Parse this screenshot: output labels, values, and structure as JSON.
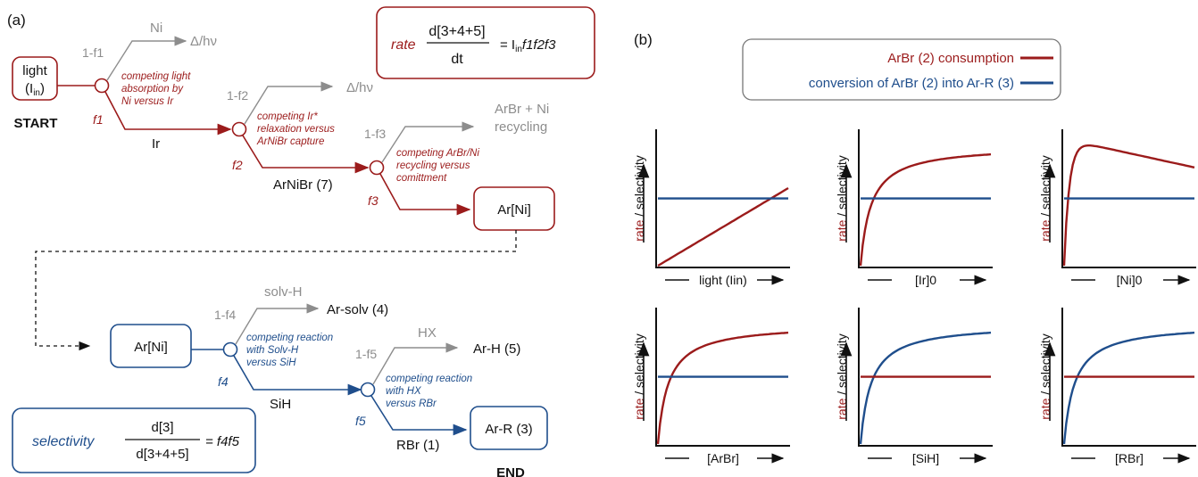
{
  "panel_a": {
    "label": "(a)",
    "start": {
      "line1": "light",
      "line2": "(I",
      "line2_sub": "in",
      "line2_end": ")",
      "caption": "START"
    },
    "end_caption": "END",
    "rate_box": {
      "word": "rate",
      "numerator": "d[3+4+5]",
      "denominator": "dt",
      "rhs": "= I",
      "rhs_sub": "in",
      "rhs_rest": "f1f2f3"
    },
    "sel_box": {
      "word": "selectivity",
      "numerator": "d[3]",
      "denominator": "d[3+4+5]",
      "rhs": "=  f4f5"
    },
    "f1": {
      "frac": "f1",
      "one_minus": "1-f1",
      "dead_end": "Δ/hν",
      "species": "Ni",
      "main": "Ir",
      "note": [
        "competing light",
        "absorption by",
        "Ni versus Ir"
      ]
    },
    "f2": {
      "frac": "f2",
      "one_minus": "1-f2",
      "dead_end": "Δ/hν",
      "main": "ArNiBr (7)",
      "note": [
        "competing Ir*",
        "relaxation versus",
        "ArNiBr capture"
      ]
    },
    "f3": {
      "frac": "f3",
      "one_minus": "1-f3",
      "side": [
        "ArBr + Ni",
        "recycling"
      ],
      "main": "Ar[Ni]",
      "note": [
        "competing ArBr/Ni",
        "recycling versus",
        "comittment"
      ]
    },
    "f4": {
      "frac": "f4",
      "one_minus": "1-f4",
      "side_reagent": "solv-H",
      "side_product": "Ar-solv (4)",
      "start_box": "Ar[Ni]",
      "main": "SiH",
      "note": [
        "competing reaction",
        "with Solv-H",
        "versus SiH"
      ]
    },
    "f5": {
      "frac": "f5",
      "one_minus": "1-f5",
      "side_reagent": "HX",
      "side_product": "Ar-H (5)",
      "main": "RBr (1)",
      "product": "Ar-R (3)",
      "note": [
        "competing reaction",
        "with HX",
        "versus RBr"
      ]
    }
  },
  "panel_b": {
    "label": "(b)",
    "legend": [
      {
        "text": "ArBr (2) consumption",
        "color": "#9b1b1b"
      },
      {
        "text": "conversion of ArBr (2) into Ar-R (3)",
        "color": "#1f4e8c"
      }
    ],
    "ylabel_rate": "rate",
    "ylabel_sel": "/ selectivity",
    "colors": {
      "rate": "#9b1b1b",
      "selectivity": "#1f4e8c"
    }
  },
  "chart_data": [
    {
      "type": "line",
      "xlabel": "light (Iin)",
      "series": [
        {
          "color": "#9b1b1b",
          "shape": "linear increase"
        },
        {
          "color": "#1f4e8c",
          "shape": "constant"
        }
      ]
    },
    {
      "type": "line",
      "xlabel": "[Ir]0",
      "series": [
        {
          "color": "#9b1b1b",
          "shape": "saturating increase"
        },
        {
          "color": "#1f4e8c",
          "shape": "constant"
        }
      ]
    },
    {
      "type": "line",
      "xlabel": "[Ni]0",
      "series": [
        {
          "color": "#9b1b1b",
          "shape": "rise then decline"
        },
        {
          "color": "#1f4e8c",
          "shape": "constant"
        }
      ]
    },
    {
      "type": "line",
      "xlabel": "[ArBr]",
      "series": [
        {
          "color": "#9b1b1b",
          "shape": "saturating increase"
        },
        {
          "color": "#1f4e8c",
          "shape": "constant"
        }
      ]
    },
    {
      "type": "line",
      "xlabel": "[SiH]",
      "series": [
        {
          "color": "#1f4e8c",
          "shape": "saturating increase"
        },
        {
          "color": "#9b1b1b",
          "shape": "constant"
        }
      ]
    },
    {
      "type": "line",
      "xlabel": "[RBr]",
      "series": [
        {
          "color": "#1f4e8c",
          "shape": "saturating increase"
        },
        {
          "color": "#9b1b1b",
          "shape": "constant"
        }
      ]
    }
  ]
}
